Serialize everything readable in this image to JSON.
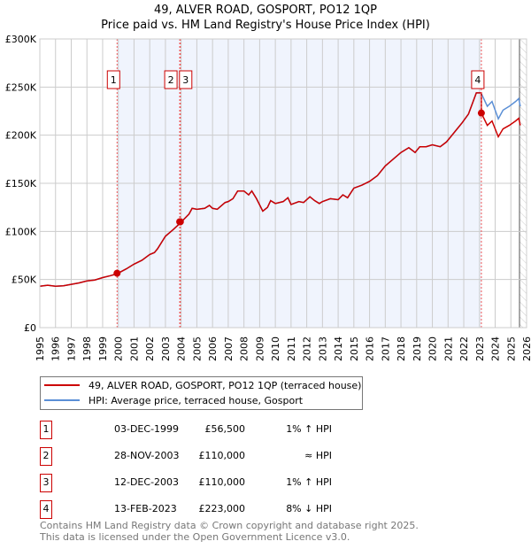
{
  "chart_data": {
    "type": "line",
    "title": "49, ALVER ROAD, GOSPORT, PO12 1QP",
    "subtitle": "Price paid vs. HM Land Registry's House Price Index (HPI)",
    "xlim": [
      1995,
      2026
    ],
    "ylim": [
      0,
      300000
    ],
    "x_ticks": [
      "1995",
      "1996",
      "1997",
      "1998",
      "1999",
      "2000",
      "2001",
      "2002",
      "2003",
      "2004",
      "2005",
      "2006",
      "2007",
      "2008",
      "2009",
      "2010",
      "2011",
      "2012",
      "2013",
      "2014",
      "2015",
      "2016",
      "2017",
      "2018",
      "2019",
      "2020",
      "2021",
      "2022",
      "2023",
      "2024",
      "2025",
      "2026"
    ],
    "y_ticks": [
      {
        "v": 0,
        "label": "£0"
      },
      {
        "v": 50000,
        "label": "£50K"
      },
      {
        "v": 100000,
        "label": "£100K"
      },
      {
        "v": 150000,
        "label": "£150K"
      },
      {
        "v": 200000,
        "label": "£200K"
      },
      {
        "v": 250000,
        "label": "£250K"
      },
      {
        "v": 300000,
        "label": "£300K"
      }
    ],
    "grid": true,
    "shaded_range": [
      1999.92,
      2023.12
    ],
    "hatched_from": 2025.55,
    "series": [
      {
        "name": "HPI: Average price, terraced house, Gosport",
        "color": "#5b8fd6",
        "x": [
          1995,
          1995.5,
          1996,
          1996.5,
          1997,
          1997.5,
          1998,
          1998.5,
          1999,
          1999.5,
          1999.92,
          2000.5,
          2001,
          2001.5,
          2002,
          2002.3,
          2002.5,
          2003,
          2003.5,
          2003.9,
          2004.5,
          2004.7,
          2005,
          2005.5,
          2005.8,
          2006,
          2006.3,
          2006.8,
          2007,
          2007.3,
          2007.6,
          2008,
          2008.3,
          2008.5,
          2008.8,
          2009.2,
          2009.5,
          2009.7,
          2010,
          2010.5,
          2010.8,
          2011,
          2011.5,
          2011.8,
          2012.2,
          2012.5,
          2012.8,
          2013,
          2013.5,
          2014,
          2014.3,
          2014.6,
          2015,
          2015.5,
          2016,
          2016.5,
          2017,
          2017.5,
          2018,
          2018.5,
          2018.9,
          2019.2,
          2019.6,
          2020,
          2020.5,
          2020.9,
          2021.5,
          2021.9,
          2022.3,
          2022.8,
          2023.1,
          2023.5,
          2023.8,
          2024.2,
          2024.5,
          2024.9,
          2025.3,
          2025.5,
          2025.6
        ],
        "y": [
          43000,
          44000,
          43000,
          43500,
          45000,
          46500,
          48500,
          49500,
          52000,
          54000,
          56000,
          61000,
          66000,
          70000,
          76000,
          78000,
          82000,
          95000,
          102000,
          108000,
          118000,
          124000,
          123000,
          124000,
          127000,
          124000,
          123000,
          130000,
          131000,
          134000,
          142000,
          142000,
          138000,
          142000,
          134000,
          121000,
          125000,
          132000,
          129000,
          131000,
          135000,
          128000,
          131000,
          130000,
          136000,
          132000,
          129000,
          131000,
          134000,
          133000,
          138000,
          135000,
          145000,
          148000,
          152000,
          158000,
          168000,
          175000,
          182000,
          187000,
          182000,
          188000,
          188000,
          190000,
          188000,
          193000,
          205000,
          213000,
          222000,
          244000,
          244000,
          230000,
          235000,
          217000,
          226000,
          230000,
          235000,
          238000,
          230000
        ]
      },
      {
        "name": "49, ALVER ROAD, GOSPORT, PO12 1QP (terraced house)",
        "color": "#cc0000"
      }
    ],
    "sales": [
      {
        "id": "1",
        "x": 1999.92,
        "price": 56500,
        "date": "03-DEC-1999",
        "price_label": "£56,500",
        "hpi": "1% ↑ HPI"
      },
      {
        "id": "2",
        "x": 2003.91,
        "price": 110000,
        "date": "28-NOV-2003",
        "price_label": "£110,000",
        "hpi": "≈ HPI"
      },
      {
        "id": "3",
        "x": 2003.95,
        "price": 110000,
        "date": "12-DEC-2003",
        "price_label": "£110,000",
        "hpi": "1% ↑ HPI"
      },
      {
        "id": "4",
        "x": 2023.12,
        "price": 223000,
        "date": "13-FEB-2023",
        "price_label": "£223,000",
        "hpi": "8% ↓ HPI"
      }
    ]
  },
  "legend": {
    "property": "49, ALVER ROAD, GOSPORT, PO12 1QP (terraced house)",
    "hpi": "HPI: Average price, terraced house, Gosport"
  },
  "footer": {
    "line1": "Contains HM Land Registry data © Crown copyright and database right 2025.",
    "line2": "This data is licensed under the Open Government Licence v3.0."
  }
}
